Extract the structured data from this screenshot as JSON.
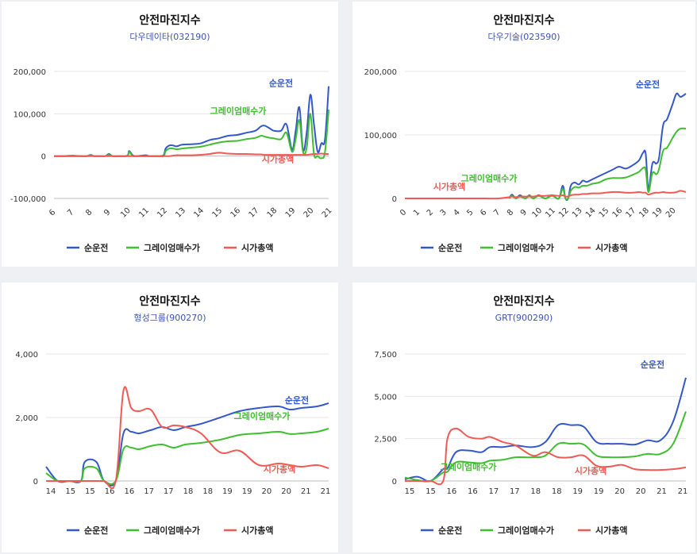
{
  "colors": {
    "s1": "#3458c9",
    "s2": "#3fbf2f",
    "s3": "#f05a55"
  },
  "legend": [
    "순운전",
    "그레이엄매수가",
    "시가총액"
  ],
  "chart_data": [
    {
      "type": "line",
      "title": "안전마진지수",
      "subtitle": "다우데이타(032190)",
      "ylim": [
        -100000,
        200000
      ],
      "yticks": [
        200000,
        100000,
        0,
        -100000
      ],
      "ytick_labels": [
        "200,000",
        "100,000",
        "0",
        "-100,000"
      ],
      "x": [
        6,
        6.5,
        7,
        7.5,
        7.8,
        8,
        8.2,
        8.5,
        8.8,
        9,
        9.2,
        9.5,
        10,
        10.1,
        10.3,
        10.5,
        11,
        11.2,
        11.5,
        11.8,
        12,
        12.1,
        12.3,
        12.5,
        12.7,
        13,
        13.5,
        14,
        14.5,
        15,
        15.5,
        16,
        16.5,
        17,
        17.3,
        17.5,
        17.8,
        18,
        18.4,
        18.7,
        19,
        19.2,
        19.4,
        19.6,
        19.8,
        20,
        20.2,
        20.4,
        20.6,
        20.8,
        21
      ],
      "xticks": [
        6,
        7,
        8,
        9,
        10,
        11,
        12,
        13,
        14,
        15,
        16,
        17,
        18,
        19,
        20,
        21
      ],
      "series": [
        {
          "name": "순운전",
          "values": [
            0,
            0,
            1000,
            0,
            0,
            3000,
            0,
            0,
            0,
            5000,
            0,
            0,
            1000,
            12000,
            2000,
            0,
            2000,
            0,
            0,
            0,
            3000,
            18000,
            25000,
            25000,
            23000,
            27000,
            28000,
            30000,
            38000,
            42000,
            48000,
            50000,
            55000,
            60000,
            70000,
            72000,
            65000,
            60000,
            60000,
            75000,
            15000,
            60000,
            115000,
            15000,
            55000,
            145000,
            75000,
            10000,
            30000,
            40000,
            165000
          ]
        },
        {
          "name": "그레이엄매수가",
          "values": [
            0,
            0,
            0,
            0,
            0,
            2000,
            0,
            0,
            0,
            3000,
            0,
            0,
            0,
            10000,
            0,
            0,
            0,
            0,
            0,
            0,
            0,
            12000,
            18000,
            18000,
            16000,
            18000,
            20000,
            22000,
            27000,
            32000,
            35000,
            36000,
            40000,
            43000,
            48000,
            46000,
            43000,
            42000,
            40000,
            55000,
            10000,
            40000,
            85000,
            10000,
            20000,
            100000,
            5000,
            0,
            -5000,
            10000,
            110000
          ]
        },
        {
          "name": "시가총액",
          "values": [
            0,
            0,
            0,
            0,
            0,
            0,
            0,
            0,
            0,
            0,
            0,
            0,
            0,
            0,
            0,
            0,
            0,
            0,
            0,
            0,
            0,
            0,
            0,
            1000,
            2000,
            2000,
            2000,
            3000,
            5000,
            8000,
            6000,
            5000,
            5000,
            4000,
            4000,
            3000,
            3000,
            3000,
            3000,
            3000,
            3000,
            3000,
            3000,
            3000,
            3000,
            4000,
            5000,
            5000,
            6000,
            5000,
            5000
          ]
        }
      ],
      "labels": [
        {
          "text": "순운전",
          "y": 165000
        },
        {
          "text": "그레이엄매수가",
          "y": 100000
        },
        {
          "text": "시가총액",
          "y": -15000
        }
      ]
    },
    {
      "type": "line",
      "title": "안전마진지수",
      "subtitle": "다우기술(023590)",
      "ylim": [
        0,
        200000
      ],
      "yticks": [
        200000,
        100000,
        0
      ],
      "ytick_labels": [
        "200,000",
        "100,000",
        "0"
      ],
      "x": [
        0,
        1,
        2,
        3,
        4,
        5,
        6,
        7,
        7.8,
        8,
        8.3,
        8.6,
        9,
        9.3,
        9.6,
        10,
        10.5,
        11,
        11.5,
        11.8,
        12,
        12.2,
        12.4,
        12.7,
        13,
        13.3,
        13.6,
        14,
        14.5,
        15,
        15.5,
        16,
        16.5,
        17,
        17.5,
        17.8,
        18,
        18.2,
        18.5,
        18.8,
        19,
        19.3,
        19.6,
        20,
        20.3,
        20.6,
        21
      ],
      "xticks": [
        0,
        1,
        2,
        3,
        4,
        5,
        6,
        7,
        8,
        9,
        10,
        11,
        12,
        13,
        14,
        15,
        16,
        17,
        18,
        19,
        20
      ],
      "series": [
        {
          "name": "순운전",
          "values": [
            null,
            null,
            null,
            null,
            null,
            null,
            null,
            null,
            0,
            6000,
            0,
            5000,
            0,
            5000,
            0,
            5000,
            0,
            5000,
            0,
            20000,
            0,
            0,
            20000,
            25000,
            22000,
            28000,
            26000,
            30000,
            35000,
            40000,
            45000,
            50000,
            47000,
            52000,
            60000,
            72000,
            70000,
            15000,
            55000,
            55000,
            65000,
            115000,
            125000,
            148000,
            165000,
            160000,
            165000
          ]
        },
        {
          "name": "그레이엄매수가",
          "values": [
            null,
            null,
            null,
            null,
            null,
            null,
            null,
            null,
            0,
            4000,
            0,
            3000,
            0,
            4000,
            0,
            4000,
            0,
            4000,
            0,
            15000,
            0,
            0,
            12000,
            18000,
            17000,
            20000,
            20000,
            23000,
            25000,
            30000,
            32000,
            32000,
            33000,
            37000,
            42000,
            48000,
            45000,
            10000,
            40000,
            38000,
            47000,
            75000,
            80000,
            95000,
            105000,
            110000,
            110000
          ]
        },
        {
          "name": "시가총액",
          "values": [
            0,
            0,
            0,
            0,
            0,
            0,
            0,
            0,
            2000,
            3000,
            2000,
            3000,
            3000,
            3000,
            3000,
            4000,
            4000,
            5000,
            4000,
            5000,
            3000,
            3000,
            5000,
            6000,
            6000,
            7000,
            7000,
            8000,
            8000,
            9000,
            10000,
            10000,
            9000,
            9000,
            10000,
            9000,
            9000,
            6000,
            8000,
            9000,
            9000,
            10000,
            9000,
            9000,
            10000,
            12000,
            10000
          ]
        }
      ],
      "labels": [
        {
          "text": "순운전",
          "y": 175000
        },
        {
          "text": "그레이엄매수가",
          "y": 27000
        },
        {
          "text": "시가총액",
          "y": 14000
        }
      ]
    },
    {
      "type": "line",
      "title": "안전마진지수",
      "subtitle": "형성그룹(900270)",
      "ylim": [
        0,
        4000
      ],
      "yticks": [
        4000,
        2000,
        0
      ],
      "ytick_labels": [
        "4,000",
        "2,000",
        "0"
      ],
      "x": [
        14,
        14.3,
        14.6,
        14.9,
        15,
        15.3,
        15.5,
        15.8,
        16,
        16.2,
        16.4,
        16.7,
        17,
        17.3,
        17.6,
        18,
        18.5,
        19,
        19.5,
        20,
        20.3,
        20.6,
        21,
        21.3
      ],
      "xticks": [
        14,
        15,
        16,
        17,
        18,
        19,
        20,
        21
      ],
      "xtick_labels": [
        "14",
        "15",
        "15",
        "16",
        "16",
        "17",
        "17",
        "18",
        "18",
        "19",
        "19",
        "20",
        "20",
        "21",
        "21"
      ],
      "series": [
        {
          "name": "순운전",
          "values": [
            450,
            0,
            0,
            0,
            600,
            600,
            0,
            0,
            1500,
            1550,
            1500,
            1600,
            1700,
            1600,
            1700,
            1800,
            2000,
            2200,
            2300,
            2350,
            2250,
            2300,
            2350,
            2450
          ]
        },
        {
          "name": "그레이엄매수가",
          "values": [
            250,
            0,
            0,
            0,
            400,
            400,
            0,
            0,
            1000,
            1050,
            1000,
            1100,
            1150,
            1050,
            1150,
            1200,
            1300,
            1450,
            1500,
            1550,
            1480,
            1500,
            1550,
            1650
          ]
        },
        {
          "name": "시가총액",
          "values": [
            0,
            0,
            0,
            0,
            0,
            0,
            0,
            0,
            2850,
            2300,
            2200,
            2250,
            1700,
            1750,
            1700,
            1500,
            900,
            950,
            500,
            550,
            500,
            450,
            500,
            400
          ]
        }
      ],
      "labels": [
        {
          "text": "순운전",
          "y": 2450
        },
        {
          "text": "그레이엄매수가",
          "y": 1950
        },
        {
          "text": "시가총액",
          "y": 270
        }
      ]
    },
    {
      "type": "line",
      "title": "안전마진지수",
      "subtitle": "GRT(900290)",
      "ylim": [
        0,
        7500
      ],
      "yticks": [
        7500,
        5000,
        2500,
        0
      ],
      "ytick_labels": [
        "7,500",
        "5,000",
        "2,500",
        "0"
      ],
      "x": [
        15,
        15.3,
        15.6,
        15.9,
        16,
        16.2,
        16.5,
        16.8,
        17,
        17.3,
        17.6,
        18,
        18.3,
        18.6,
        18.9,
        19.2,
        19.5,
        19.8,
        20.1,
        20.4,
        20.7,
        21,
        21.3,
        21.6
      ],
      "xticks": [
        15,
        16,
        17,
        18,
        19,
        20,
        21
      ],
      "xtick_labels": [
        "15",
        "15",
        "16",
        "16",
        "17",
        "17",
        "18",
        "18",
        "19",
        "19",
        "20",
        "20",
        "21",
        "21"
      ],
      "series": [
        {
          "name": "순운전",
          "values": [
            100,
            250,
            0,
            700,
            750,
            1700,
            1800,
            1700,
            2000,
            2000,
            2100,
            2000,
            2300,
            3300,
            3300,
            3200,
            2300,
            2200,
            2200,
            2150,
            2400,
            2400,
            3500,
            6100
          ]
        },
        {
          "name": "그레이엄매수가",
          "values": [
            200,
            50,
            0,
            500,
            550,
            1100,
            1100,
            1050,
            1200,
            1250,
            1400,
            1400,
            1500,
            2200,
            2200,
            2150,
            1500,
            1400,
            1400,
            1450,
            1600,
            1600,
            2200,
            4100
          ]
        },
        {
          "name": "시가총액",
          "values": [
            0,
            0,
            0,
            0,
            2500,
            3100,
            2600,
            2500,
            2600,
            2300,
            2100,
            1500,
            1700,
            1400,
            1400,
            1500,
            900,
            850,
            950,
            700,
            650,
            650,
            700,
            800
          ]
        }
      ],
      "labels": [
        {
          "text": "순운전",
          "y": 6700
        },
        {
          "text": "그레이엄매수가",
          "y": 650
        },
        {
          "text": "시가총액",
          "y": 420
        }
      ]
    }
  ]
}
